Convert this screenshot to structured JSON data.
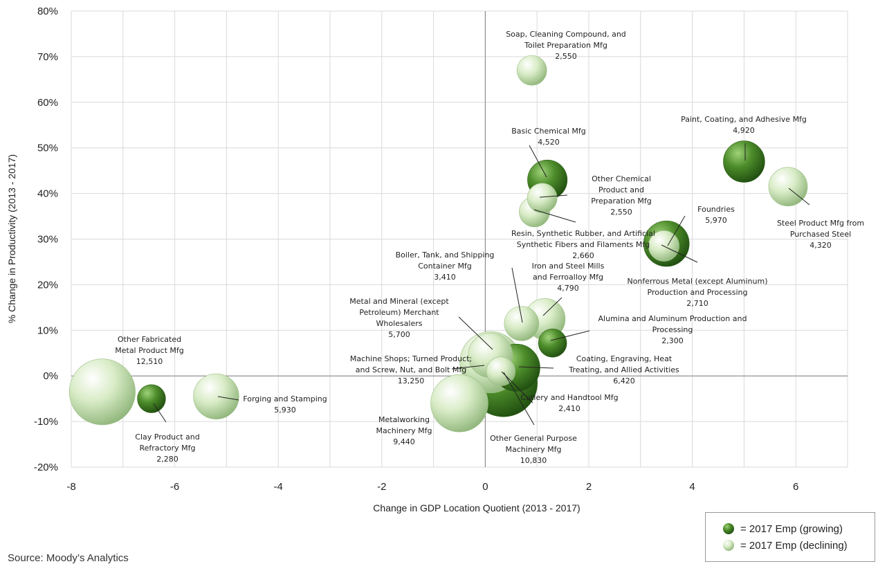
{
  "chart_data": {
    "type": "scatter",
    "subtype": "bubble",
    "xlabel": "Change in GDP Location Quotient (2013 - 2017)",
    "ylabel": "% Change in Productivity (2013 - 2017)",
    "xlim": [
      -8,
      7
    ],
    "ylim": [
      -20,
      80
    ],
    "x_ticks": [
      -8,
      -6,
      -4,
      -2,
      0,
      2,
      4,
      6
    ],
    "y_ticks": [
      -20,
      -10,
      0,
      10,
      20,
      30,
      40,
      50,
      60,
      70,
      80
    ],
    "y_tick_labels": [
      "-20%",
      "-10%",
      "0%",
      "10%",
      "20%",
      "30%",
      "40%",
      "50%",
      "60%",
      "70%",
      "80%"
    ],
    "grid": true,
    "legend_position": "bottom-right",
    "colors": {
      "growing": "#3f7a21",
      "declining": "#c9e2b1"
    },
    "series": [
      {
        "name": "= 2017 Emp (growing)",
        "key": "growing"
      },
      {
        "name": "= 2017 Emp (declining)",
        "key": "declining"
      }
    ],
    "points": [
      {
        "label_lines": [
          "Soap, Cleaning Compound, and",
          "Toilet Preparation Mfg",
          "2,550"
        ],
        "x": 0.9,
        "y": 67,
        "size": 2550,
        "status": "declining"
      },
      {
        "label_lines": [
          "Basic Chemical Mfg",
          "4,520"
        ],
        "x": 1.2,
        "y": 43,
        "size": 4520,
        "status": "growing"
      },
      {
        "label_lines": [
          "Paint, Coating, and Adhesive Mfg",
          "4,920"
        ],
        "x": 5.0,
        "y": 47,
        "size": 4920,
        "status": "growing"
      },
      {
        "label_lines": [
          "Other Chemical",
          "Product and",
          "Preparation Mfg",
          "2,550"
        ],
        "x": 1.1,
        "y": 39,
        "size": 2550,
        "status": "declining"
      },
      {
        "label_lines": [
          "Resin, Synthetic Rubber, and Artificial",
          "Synthetic Fibers and Filaments Mfg",
          "2,660"
        ],
        "x": 0.95,
        "y": 36,
        "size": 2660,
        "status": "declining"
      },
      {
        "label_lines": [
          "Steel Product Mfg from",
          "Purchased Steel",
          "4,320"
        ],
        "x": 5.85,
        "y": 41.5,
        "size": 4320,
        "status": "declining"
      },
      {
        "label_lines": [
          "Foundries",
          "5,970"
        ],
        "x": 3.5,
        "y": 29,
        "size": 5970,
        "status": "growing"
      },
      {
        "label_lines": [
          "Nonferrous Metal (except Aluminum)",
          "Production and Processing",
          "2,710"
        ],
        "x": 3.45,
        "y": 28.5,
        "size": 2710,
        "status": "declining"
      },
      {
        "label_lines": [
          "Boiler, Tank, and Shipping",
          "Container Mfg",
          "3,410"
        ],
        "x": 0.7,
        "y": 11.5,
        "size": 3410,
        "status": "declining"
      },
      {
        "label_lines": [
          "Iron and Steel Mills",
          "and Ferroalloy Mfg",
          "4,790"
        ],
        "x": 1.15,
        "y": 12.5,
        "size": 4790,
        "status": "declining"
      },
      {
        "label_lines": [
          "Metal and Mineral (except",
          "Petroleum) Merchant",
          "Wholesalers",
          "5,700"
        ],
        "x": 0.1,
        "y": 4.5,
        "size": 5700,
        "status": "declining"
      },
      {
        "label_lines": [
          "Alumina and Aluminum Production and",
          "Processing",
          "2,300"
        ],
        "x": 1.3,
        "y": 7.2,
        "size": 2300,
        "status": "growing"
      },
      {
        "label_lines": [
          "Coating, Engraving, Heat",
          "Treating, and Allied Activities",
          "6,420"
        ],
        "x": 0.6,
        "y": 1.8,
        "size": 6420,
        "status": "growing"
      },
      {
        "label_lines": [
          "Machine Shops; Turned Product;",
          "and Screw, Nut, and Bolt Mfg",
          "13,250"
        ],
        "x": 0.35,
        "y": -1.5,
        "size": 13250,
        "status": "growing"
      },
      {
        "label_lines": [
          "Cutlery and Handtool Mfg",
          "2,410"
        ],
        "x": 0.3,
        "y": 1.0,
        "size": 2410,
        "status": "declining"
      },
      {
        "label_lines": [
          "Other General Purpose",
          "Machinery Mfg",
          "10,830"
        ],
        "x": 0.1,
        "y": 3.0,
        "size": 10830,
        "status": "declining"
      },
      {
        "label_lines": [
          "Metalworking",
          "Machinery Mfg",
          "9,440"
        ],
        "x": -0.5,
        "y": -6,
        "size": 9440,
        "status": "declining"
      },
      {
        "label_lines": [
          "Other Fabricated",
          "Metal Product Mfg",
          "12,510"
        ],
        "x": -7.4,
        "y": -3.5,
        "size": 12510,
        "status": "declining"
      },
      {
        "label_lines": [
          "Clay Product and",
          "Refractory Mfg",
          "2,280"
        ],
        "x": -6.45,
        "y": -5,
        "size": 2280,
        "status": "growing"
      },
      {
        "label_lines": [
          "Forging and Stamping",
          "5,930"
        ],
        "x": -5.2,
        "y": -4.5,
        "size": 5930,
        "status": "declining"
      }
    ]
  },
  "legend": {
    "growing_label": "= 2017 Emp (growing)",
    "declining_label": "= 2017 Emp (declining)"
  },
  "footer": {
    "source": "Source: Moody’s Analytics"
  }
}
